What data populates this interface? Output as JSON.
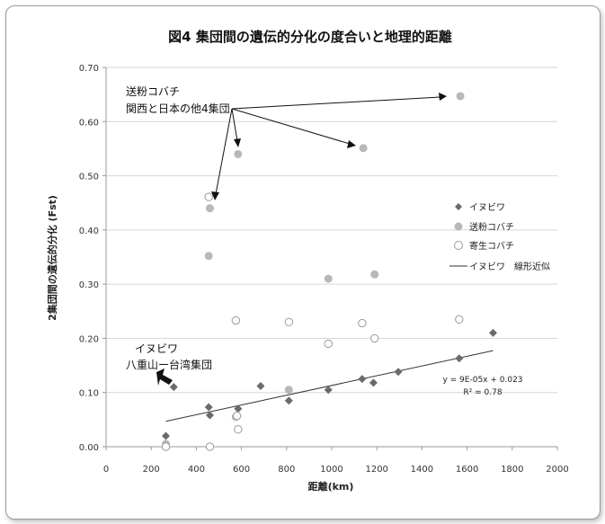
{
  "chart_data": {
    "type": "scatter",
    "title": "図4 集団間の遺伝的分化の度合いと地理的距離",
    "xlabel": "距離(km)",
    "ylabel": "2集団間の遺伝的分化 (Fst)",
    "xlim": [
      0,
      2000
    ],
    "ylim": [
      0,
      0.7
    ],
    "xticks": [
      "0",
      "200",
      "400",
      "600",
      "800",
      "1000",
      "1200",
      "1400",
      "1600",
      "1800",
      "2000"
    ],
    "yticks": [
      "0.00",
      "0.10",
      "0.20",
      "0.30",
      "0.40",
      "0.50",
      "0.60",
      "0.70"
    ],
    "grid": true,
    "legend_position": "right",
    "series": [
      {
        "name": "イヌビワ",
        "marker": "diamond",
        "color": "#6b6b6b",
        "points": [
          [
            265,
            0.02
          ],
          [
            300,
            0.11
          ],
          [
            455,
            0.073
          ],
          [
            460,
            0.058
          ],
          [
            585,
            0.07
          ],
          [
            685,
            0.112
          ],
          [
            810,
            0.085
          ],
          [
            985,
            0.105
          ],
          [
            1135,
            0.125
          ],
          [
            1185,
            0.118
          ],
          [
            1295,
            0.138
          ],
          [
            1565,
            0.163
          ],
          [
            1715,
            0.21
          ]
        ]
      },
      {
        "name": "送粉コバチ",
        "marker": "circle-filled",
        "color": "#b8b8b8",
        "points": [
          [
            265,
            0.005
          ],
          [
            455,
            0.352
          ],
          [
            460,
            0.44
          ],
          [
            585,
            0.54
          ],
          [
            575,
            0.055
          ],
          [
            810,
            0.105
          ],
          [
            985,
            0.31
          ],
          [
            1140,
            0.551
          ],
          [
            1190,
            0.318
          ],
          [
            1570,
            0.647
          ]
        ]
      },
      {
        "name": "寄生コバチ",
        "marker": "circle-open",
        "color": "#9a9a9a",
        "points": [
          [
            265,
            0.0
          ],
          [
            455,
            0.461
          ],
          [
            460,
            0.0
          ],
          [
            575,
            0.233
          ],
          [
            580,
            0.057
          ],
          [
            585,
            0.032
          ],
          [
            810,
            0.23
          ],
          [
            985,
            0.19
          ],
          [
            1135,
            0.228
          ],
          [
            1190,
            0.2
          ],
          [
            1565,
            0.235
          ]
        ]
      }
    ],
    "trendline": {
      "name": "イヌビワ　線形近似",
      "x_range": [
        265,
        1715
      ],
      "slope": 9e-05,
      "intercept": 0.023,
      "equation": "y = 9E-05x + 0.023",
      "r2": "R² = 0.78"
    },
    "annotations": {
      "kobachi_line1": "送粉コバチ",
      "kobachi_line2": "関西と日本の他4集団",
      "inubiwa_line1": "イヌビワ",
      "inubiwa_line2": "八重山ー台湾集団"
    }
  }
}
